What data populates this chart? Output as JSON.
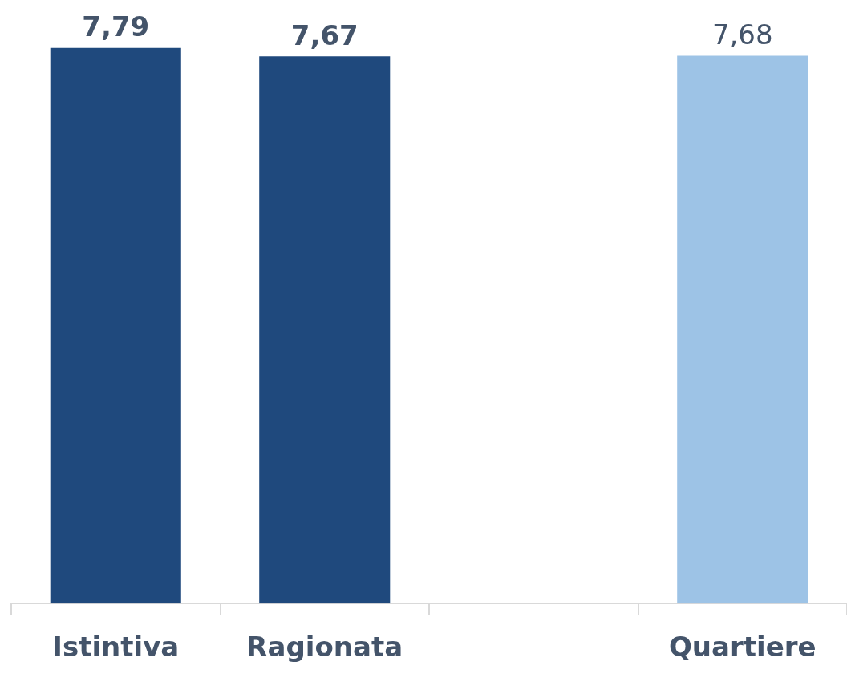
{
  "chart_data": {
    "type": "bar",
    "categories": [
      "Istintiva",
      "Ragionata",
      null,
      "Quartiere"
    ],
    "series": [
      {
        "color": "#1f497d",
        "values": [
          7.79,
          7.67,
          null,
          null
        ],
        "value_labels": [
          "7,79",
          "7,67",
          null,
          null
        ]
      },
      {
        "color": "#9dc3e6",
        "values": [
          null,
          null,
          null,
          7.68
        ],
        "value_labels": [
          null,
          null,
          null,
          "7,68"
        ]
      }
    ],
    "tick_labels": "x"
  }
}
